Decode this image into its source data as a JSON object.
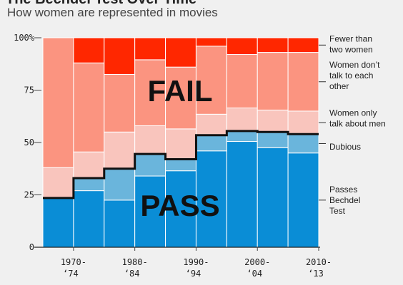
{
  "header": {
    "title": "The Bechdel Test Over Time",
    "subtitle": "How women are represented in movies"
  },
  "chart_data": {
    "type": "bar",
    "stacked": true,
    "stacked_percent": true,
    "title": "The Bechdel Test Over Time",
    "subtitle": "How women are represented in movies",
    "xlabel": "",
    "ylabel": "",
    "ylim": [
      0,
      100
    ],
    "yticks": [
      "0",
      "25",
      "50",
      "75",
      "100%"
    ],
    "ytick_values": [
      0,
      25,
      50,
      75,
      100
    ],
    "categories": [
      "1970-74",
      "1975-79",
      "1980-84",
      "1985-89",
      "1990-94",
      "1995-99",
      "2000-04",
      "2005-09",
      "2010-13"
    ],
    "xtick_labels": [
      {
        "category_index": 0,
        "line1": "1970-",
        "line2": "‘74"
      },
      {
        "category_index": 2,
        "line1": "1980-",
        "line2": "‘84"
      },
      {
        "category_index": 4,
        "line1": "1990-",
        "line2": "‘94"
      },
      {
        "category_index": 6,
        "line1": "2000-",
        "line2": "‘04"
      },
      {
        "category_index": 8,
        "line1": "2010-",
        "line2": "‘13"
      }
    ],
    "series": [
      {
        "name": "Passes Bechdel Test",
        "color": "#0a8dd6",
        "values": [
          23.5,
          27,
          22.5,
          34,
          36.5,
          46,
          50.5,
          47.5,
          45
        ]
      },
      {
        "name": "Dubious",
        "color": "#6ab5dc",
        "values": [
          0,
          6,
          15,
          10.5,
          5.5,
          7.5,
          5,
          7.5,
          9
        ]
      },
      {
        "name": "Women only talk about men",
        "color": "#f9c5bd",
        "values": [
          14.5,
          12.5,
          17.5,
          13.5,
          14.5,
          10,
          11,
          10.5,
          11
        ]
      },
      {
        "name": "Women don’t talk to each other",
        "color": "#fb9480",
        "values": [
          62,
          42.5,
          27.5,
          31.5,
          29.5,
          32.5,
          25.5,
          27.5,
          28
        ]
      },
      {
        "name": "Fewer than two women",
        "color": "#ff2700",
        "values": [
          0,
          12,
          17.5,
          10.5,
          14,
          4,
          8,
          7,
          7
        ]
      }
    ],
    "pass_line_values": [
      23.5,
      33,
      37.5,
      44.5,
      42,
      53.5,
      55.5,
      55,
      54
    ],
    "annotations": [
      "FAIL",
      "PASS"
    ],
    "legend": [
      {
        "series_index": 4,
        "line1": "Fewer than",
        "line2": "two women"
      },
      {
        "series_index": 3,
        "line1": "Women don’t",
        "line2": "talk to each",
        "line3": "other"
      },
      {
        "series_index": 2,
        "line1": "Women only",
        "line2": "talk about men"
      },
      {
        "series_index": 1,
        "line1": "Dubious"
      },
      {
        "series_index": 0,
        "line1": "Passes",
        "line2": "Bechdel",
        "line3": "Test"
      }
    ],
    "legend_position": "right",
    "grid": false
  }
}
